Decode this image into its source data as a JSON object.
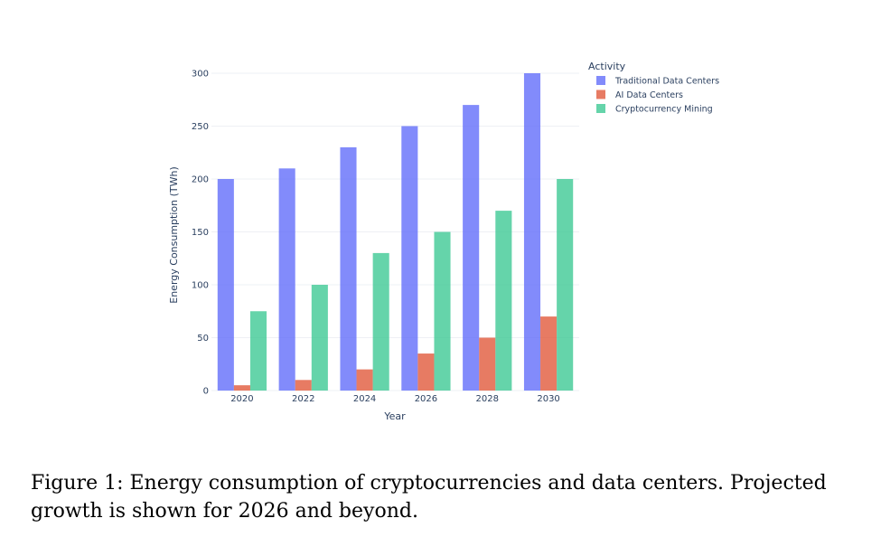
{
  "chart_data": {
    "type": "bar",
    "categories": [
      "2020",
      "2022",
      "2024",
      "2026",
      "2028",
      "2030"
    ],
    "series": [
      {
        "name": "Traditional Data Centers",
        "values": [
          200,
          210,
          230,
          250,
          270,
          300
        ],
        "color": "#636efa"
      },
      {
        "name": "AI Data Centers",
        "values": [
          5,
          10,
          20,
          35,
          50,
          70
        ],
        "color": "#e15a3c"
      },
      {
        "name": "Cryptocurrency Mining",
        "values": [
          75,
          100,
          130,
          150,
          170,
          200
        ],
        "color": "#3fc995"
      }
    ],
    "xlabel": "Year",
    "ylabel": "Energy Consumption (TWh)",
    "ylim": [
      0,
      300
    ],
    "yticks": [
      0,
      50,
      100,
      150,
      200,
      250,
      300
    ],
    "legend_title": "Activity",
    "legend_position": "top-right",
    "grid": true
  },
  "caption": "Figure 1: Energy consumption of cryptocurrencies and data centers. Projected growth is shown for 2026 and beyond."
}
